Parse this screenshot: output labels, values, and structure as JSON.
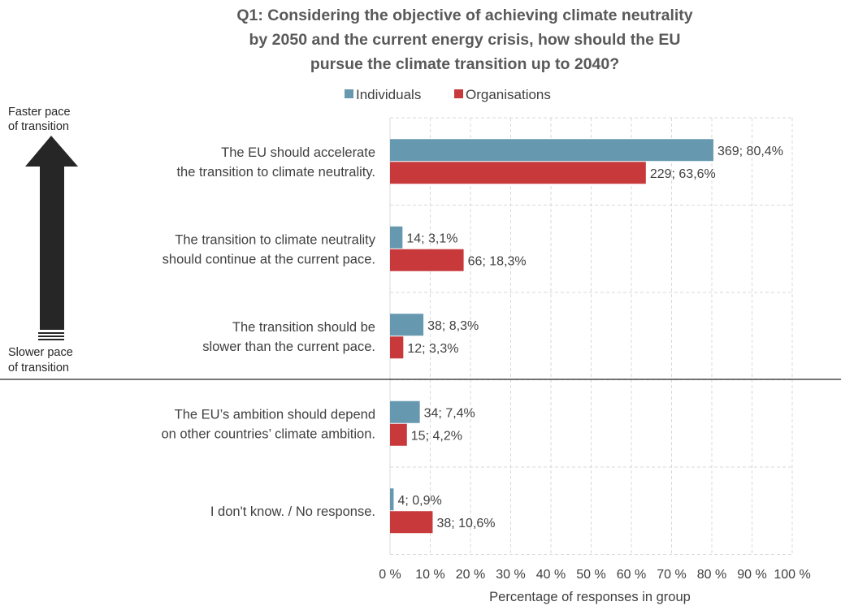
{
  "chart_data": {
    "type": "bar",
    "orientation": "horizontal",
    "title": [
      "Q1: Considering the objective of achieving climate neutrality",
      "by 2050 and the current energy crisis, how should the EU",
      "pursue the climate transition up to 2040?"
    ],
    "xlabel": "Percentage of responses in group",
    "xlim": [
      0,
      100
    ],
    "x_ticks": [
      "0 %",
      "10 %",
      "20 %",
      "30 %",
      "40 %",
      "50 %",
      "60 %",
      "70 %",
      "80 %",
      "90 %",
      "100 %"
    ],
    "grid": true,
    "legend_position": "top",
    "categories": [
      [
        "The EU should accelerate",
        "the transition to climate neutrality."
      ],
      [
        "The transition to climate neutrality",
        "should continue at the current pace."
      ],
      [
        "The transition should be",
        "slower than the current pace."
      ],
      [
        "The EU’s ambition should depend",
        "on other countries’ climate ambition."
      ],
      [
        "I don't know. / No response."
      ]
    ],
    "series": [
      {
        "name": "Individuals",
        "color": "#6699b0",
        "values": [
          80.4,
          3.1,
          8.3,
          7.4,
          0.9
        ],
        "labels": [
          "369; 80,4%",
          "14; 3,1%",
          "38; 8,3%",
          "34; 7,4%",
          "4; 0,9%"
        ]
      },
      {
        "name": "Organisations",
        "color": "#c8393b",
        "values": [
          63.6,
          18.3,
          3.3,
          4.2,
          10.6
        ],
        "labels": [
          "229; 63,6%",
          "66; 18,3%",
          "12; 3,3%",
          "15; 4,2%",
          "38; 10,6%"
        ]
      }
    ],
    "annotations": {
      "top_label": [
        "Faster pace",
        "of transition"
      ],
      "bottom_label": [
        "Slower pace",
        "of transition"
      ]
    }
  }
}
